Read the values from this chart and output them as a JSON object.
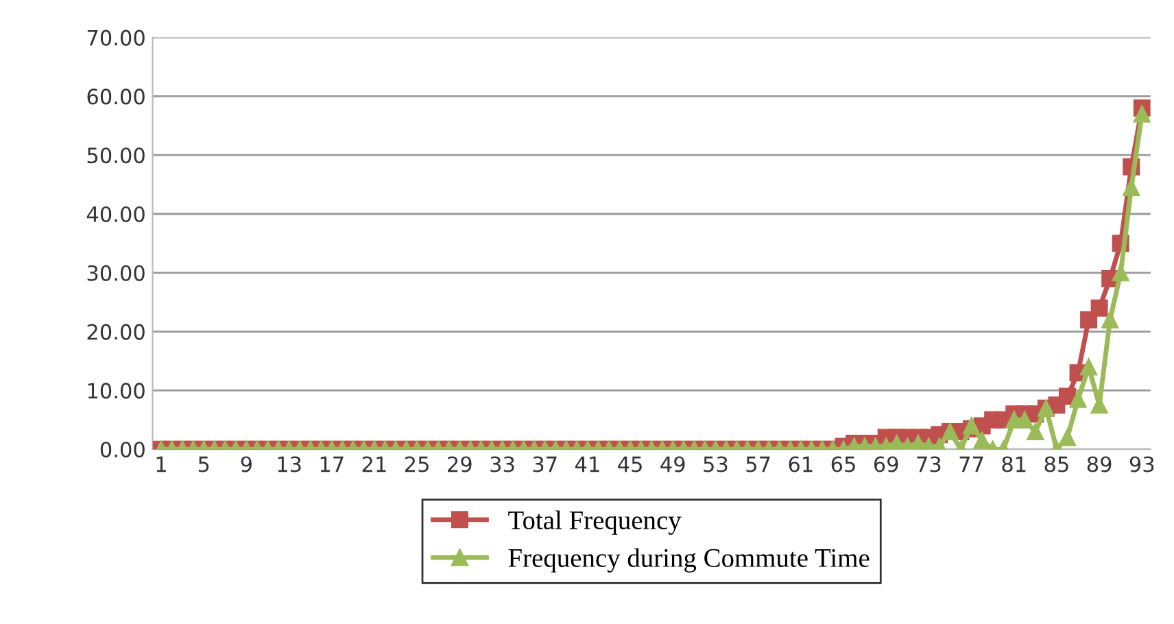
{
  "chart_data": {
    "type": "line",
    "categories": [
      "1",
      null,
      null,
      null,
      "5",
      null,
      null,
      null,
      "9",
      null,
      null,
      null,
      "13",
      null,
      null,
      null,
      "17",
      null,
      null,
      null,
      "21",
      null,
      null,
      null,
      "25",
      null,
      null,
      null,
      "29",
      null,
      null,
      null,
      "33",
      null,
      null,
      null,
      "37",
      null,
      null,
      null,
      "41",
      null,
      null,
      null,
      "45",
      null,
      null,
      null,
      "49",
      null,
      null,
      null,
      "53",
      null,
      null,
      null,
      "57",
      null,
      null,
      null,
      "61",
      null,
      null,
      null,
      "65",
      null,
      null,
      null,
      "69",
      null,
      null,
      null,
      "73",
      null,
      null,
      null,
      "77",
      null,
      null,
      null,
      "81",
      null,
      null,
      null,
      "85",
      null,
      null,
      null,
      "89",
      null,
      null,
      null,
      "93"
    ],
    "series": [
      {
        "name": "Total Frequency",
        "color": "#c0504d",
        "marker": "square",
        "values": [
          0,
          0,
          0,
          0,
          0,
          0,
          0,
          0,
          0,
          0,
          0,
          0,
          0,
          0,
          0,
          0,
          0,
          0,
          0,
          0,
          0,
          0,
          0,
          0,
          0,
          0,
          0,
          0,
          0,
          0,
          0,
          0,
          0,
          0,
          0,
          0,
          0,
          0,
          0,
          0,
          0,
          0,
          0,
          0,
          0,
          0,
          0,
          0,
          0,
          0,
          0,
          0,
          0,
          0,
          0,
          0,
          0,
          0,
          0,
          0,
          0,
          0,
          0,
          0,
          0.5,
          1,
          1,
          1,
          2,
          2,
          2,
          2,
          2,
          2.5,
          3,
          3,
          3.5,
          4,
          5,
          5,
          6,
          6,
          6,
          7,
          7.5,
          9,
          13,
          22,
          24,
          29,
          35,
          48,
          58
        ]
      },
      {
        "name": "Frequency during Commute Time",
        "color": "#9bbb59",
        "marker": "triangle",
        "values": [
          0,
          0,
          0,
          0,
          0,
          0,
          0,
          0,
          0,
          0,
          0,
          0,
          0,
          0,
          0,
          0,
          0,
          0,
          0,
          0,
          0,
          0,
          0,
          0,
          0,
          0,
          0,
          0,
          0,
          0,
          0,
          0,
          0,
          0,
          0,
          0,
          0,
          0,
          0,
          0,
          0,
          0,
          0,
          0,
          0,
          0,
          0,
          0,
          0,
          0,
          0,
          0,
          0,
          0,
          0,
          0,
          0,
          0,
          0,
          0,
          0,
          0,
          0,
          0,
          0,
          0.5,
          0.5,
          0.5,
          0.5,
          1,
          0.5,
          1,
          0.5,
          0.5,
          3,
          0,
          4,
          1.5,
          0,
          0,
          5,
          5,
          3,
          7,
          0,
          2,
          8.5,
          14,
          7.5,
          22,
          30,
          44.5,
          57
        ]
      }
    ],
    "ylim": [
      0,
      70
    ],
    "yticks": [
      {
        "value": 0,
        "label": "0.00"
      },
      {
        "value": 10,
        "label": "10.00"
      },
      {
        "value": 20,
        "label": "20.00"
      },
      {
        "value": 30,
        "label": "30.00"
      },
      {
        "value": 40,
        "label": "40.00"
      },
      {
        "value": 50,
        "label": "50.00"
      },
      {
        "value": 60,
        "label": "60.00"
      },
      {
        "value": 70,
        "label": "70.00"
      }
    ],
    "grid": "y",
    "legend": "bottom",
    "line_style": "solid"
  }
}
